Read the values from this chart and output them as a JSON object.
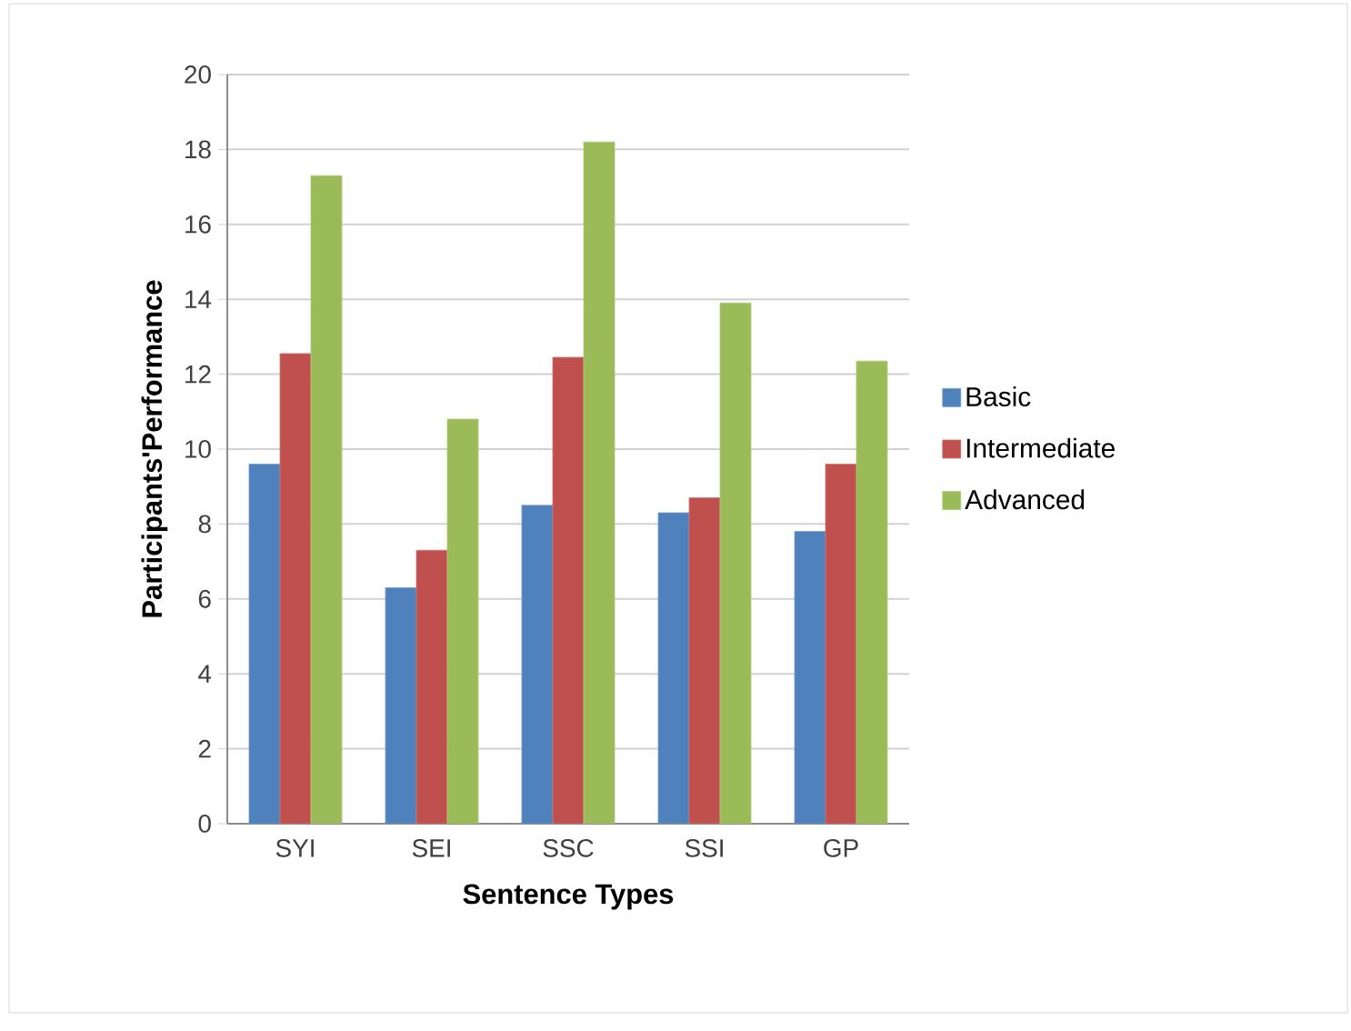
{
  "chart_data": {
    "type": "bar",
    "xlabel": "Sentence Types",
    "ylabel": "Participants'Performance",
    "categories": [
      "SYI",
      "SEI",
      "SSC",
      "SSI",
      "GP"
    ],
    "series": [
      {
        "name": "Basic",
        "color": "#4f81bd",
        "values": [
          9.6,
          6.3,
          8.5,
          8.3,
          7.8
        ]
      },
      {
        "name": "Intermediate",
        "color": "#c0504d",
        "values": [
          12.55,
          7.3,
          12.45,
          8.7,
          9.6
        ]
      },
      {
        "name": "Advanced",
        "color": "#9bbb59",
        "values": [
          17.3,
          10.8,
          18.2,
          13.9,
          12.35
        ]
      }
    ],
    "ylim": [
      0,
      20
    ],
    "yticks": [
      0,
      2,
      4,
      6,
      8,
      10,
      12,
      14,
      16,
      18,
      20
    ],
    "grid": "y",
    "legend": "right"
  }
}
